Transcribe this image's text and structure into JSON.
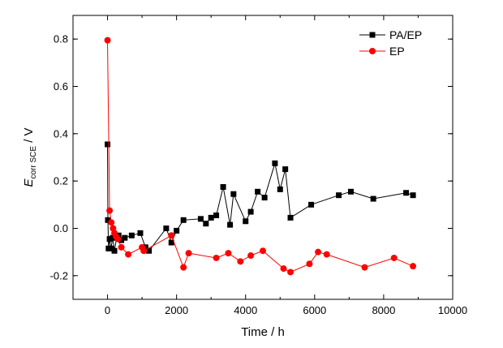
{
  "chart_data": {
    "type": "scatter",
    "xlabel": "Time / h",
    "ylabel": {
      "main": "E",
      "sub": "corr SCE",
      "rest": " / V"
    },
    "xlim": [
      -1000,
      10000
    ],
    "ylim": [
      -0.3,
      0.9
    ],
    "x_ticks": [
      0,
      2000,
      4000,
      6000,
      8000,
      10000
    ],
    "x_tick_labels": [
      "0",
      "2000",
      "4000",
      "6000",
      "8000",
      "10000"
    ],
    "y_ticks": [
      -0.2,
      0.0,
      0.2,
      0.4,
      0.6,
      0.8
    ],
    "y_tick_labels": [
      "-0.2",
      "0.0",
      "0.2",
      "0.4",
      "0.6",
      "0.8"
    ],
    "legend_position": "top-right",
    "grid": false,
    "series": [
      {
        "name": "PA/EP",
        "color": "#000000",
        "marker": "square",
        "points": [
          [
            0,
            0.355
          ],
          [
            10,
            0.035
          ],
          [
            30,
            -0.085
          ],
          [
            60,
            -0.045
          ],
          [
            100,
            -0.085
          ],
          [
            150,
            -0.04
          ],
          [
            200,
            -0.095
          ],
          [
            260,
            -0.04
          ],
          [
            320,
            -0.03
          ],
          [
            400,
            -0.05
          ],
          [
            500,
            -0.04
          ],
          [
            700,
            -0.03
          ],
          [
            950,
            -0.02
          ],
          [
            1100,
            -0.08
          ],
          [
            1200,
            -0.095
          ],
          [
            1700,
            0.0
          ],
          [
            1850,
            -0.06
          ],
          [
            2000,
            -0.01
          ],
          [
            2200,
            0.035
          ],
          [
            2700,
            0.04
          ],
          [
            2850,
            0.02
          ],
          [
            3000,
            0.045
          ],
          [
            3150,
            0.055
          ],
          [
            3350,
            0.175
          ],
          [
            3550,
            0.015
          ],
          [
            3650,
            0.145
          ],
          [
            4000,
            0.03
          ],
          [
            4150,
            0.07
          ],
          [
            4350,
            0.155
          ],
          [
            4550,
            0.13
          ],
          [
            4850,
            0.275
          ],
          [
            5000,
            0.165
          ],
          [
            5150,
            0.25
          ],
          [
            5300,
            0.045
          ],
          [
            5900,
            0.1
          ],
          [
            6700,
            0.14
          ],
          [
            7050,
            0.155
          ],
          [
            7700,
            0.125
          ],
          [
            8650,
            0.15
          ],
          [
            8850,
            0.14
          ]
        ]
      },
      {
        "name": "EP",
        "color": "#ff0000",
        "marker": "circle",
        "points": [
          [
            0,
            0.795
          ],
          [
            60,
            0.075
          ],
          [
            110,
            0.025
          ],
          [
            160,
            0.0
          ],
          [
            200,
            -0.02
          ],
          [
            250,
            -0.035
          ],
          [
            300,
            -0.045
          ],
          [
            400,
            -0.08
          ],
          [
            600,
            -0.11
          ],
          [
            1000,
            -0.08
          ],
          [
            1050,
            -0.095
          ],
          [
            1850,
            -0.03
          ],
          [
            2200,
            -0.165
          ],
          [
            2350,
            -0.105
          ],
          [
            3150,
            -0.125
          ],
          [
            3500,
            -0.105
          ],
          [
            3850,
            -0.14
          ],
          [
            4150,
            -0.115
          ],
          [
            4500,
            -0.095
          ],
          [
            5100,
            -0.17
          ],
          [
            5300,
            -0.185
          ],
          [
            5850,
            -0.15
          ],
          [
            6100,
            -0.1
          ],
          [
            6350,
            -0.11
          ],
          [
            7450,
            -0.165
          ],
          [
            8300,
            -0.125
          ],
          [
            8850,
            -0.16
          ]
        ]
      }
    ]
  }
}
